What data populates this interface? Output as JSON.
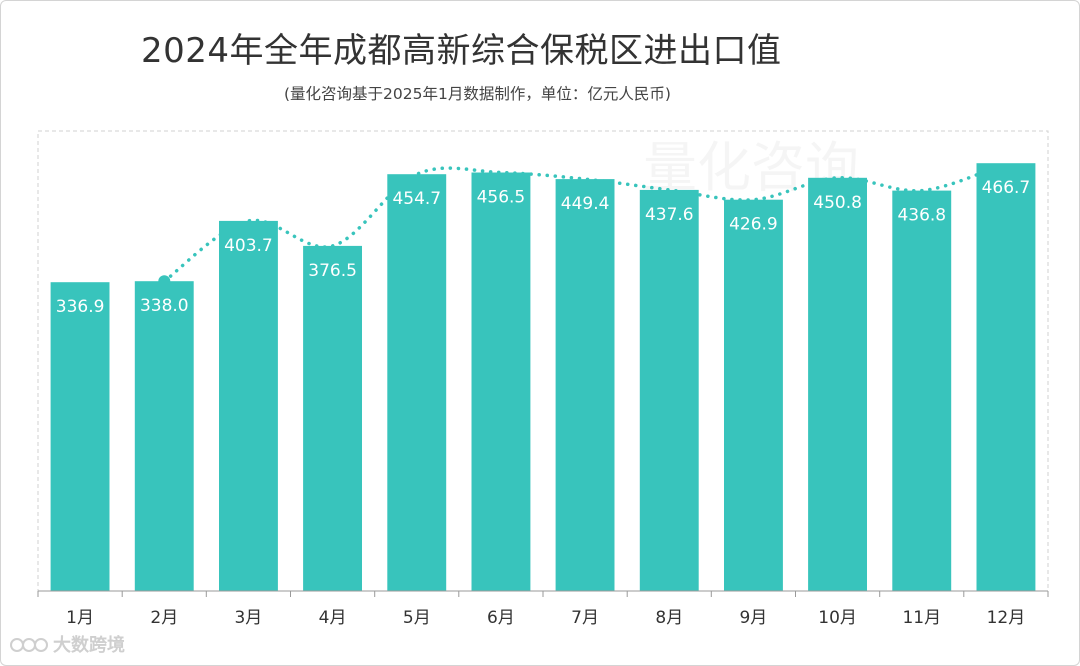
{
  "chart_data": {
    "type": "bar",
    "title": "2024年全年成都高新综合保税区进出口值",
    "subtitle": "(量化咨询基于2025年1月数据制作，单位：亿元人民币)",
    "categories": [
      "1月",
      "2月",
      "3月",
      "4月",
      "5月",
      "6月",
      "7月",
      "8月",
      "9月",
      "10月",
      "11月",
      "12月"
    ],
    "values": [
      336.9,
      338.0,
      403.7,
      376.5,
      454.7,
      456.5,
      449.4,
      437.6,
      426.9,
      450.8,
      436.8,
      466.7
    ],
    "value_labels": [
      "336.9",
      "338.0",
      "403.7",
      "376.5",
      "454.7",
      "456.5",
      "449.4",
      "437.6",
      "426.9",
      "450.8",
      "436.8",
      "466.7"
    ],
    "trendline": {
      "type": "dotted",
      "from_category": "2月",
      "to_category": "12月"
    },
    "ylim": [
      0,
      480
    ],
    "grid": false,
    "legend": "none",
    "colors": {
      "bar": "#38c4bc",
      "label": "#ffffff",
      "trend": "#38c4bc",
      "axis_text": "#333333"
    }
  },
  "watermark": {
    "text": "量化咨询"
  },
  "footer": {
    "brand": "大数跨境",
    "icon": "brand-logo-icon"
  }
}
